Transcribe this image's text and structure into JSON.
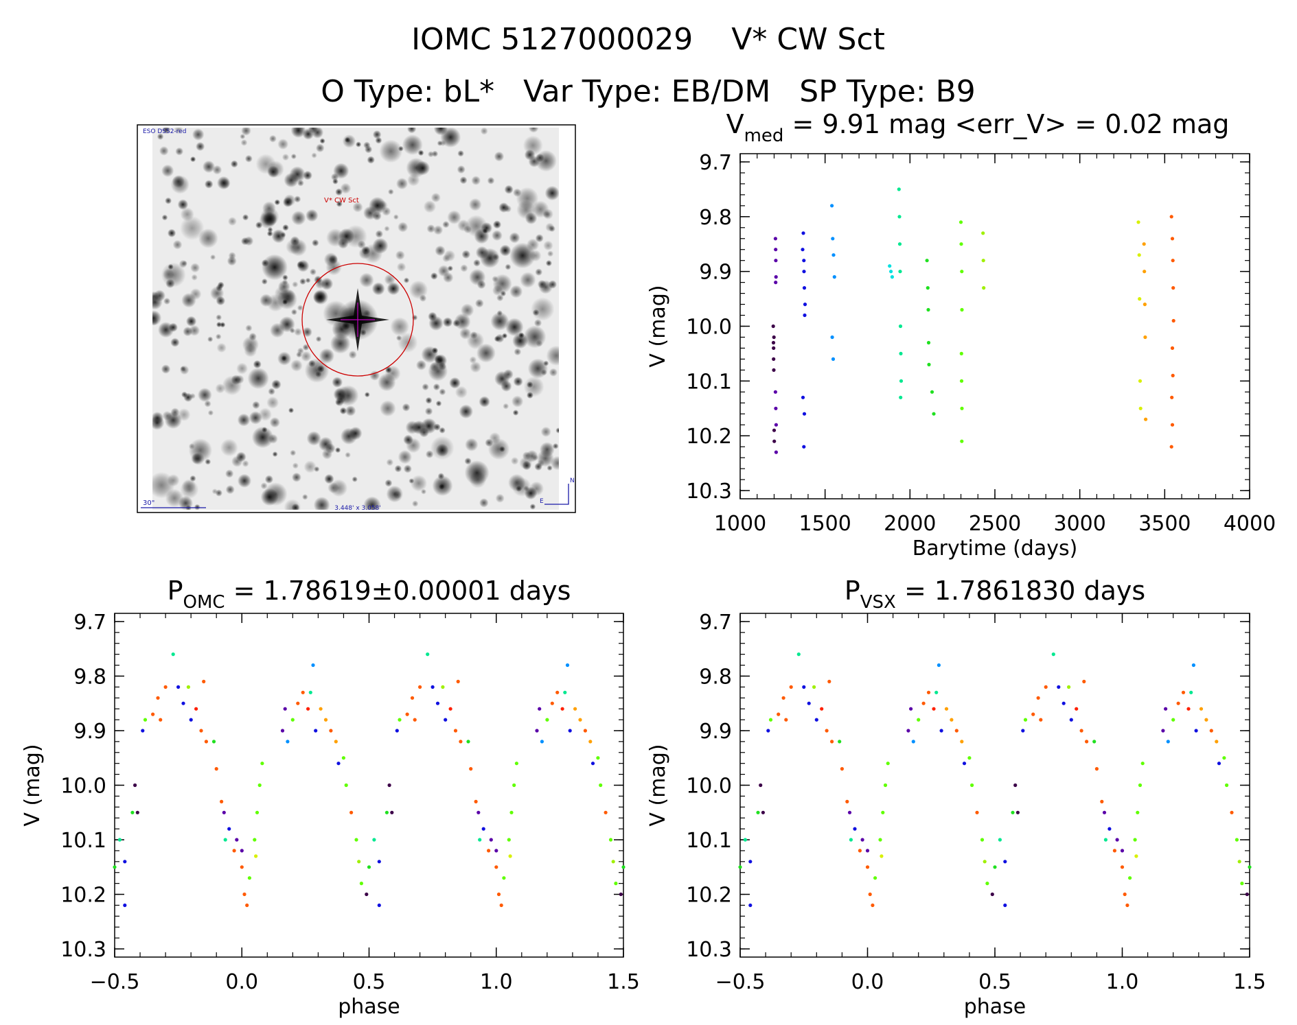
{
  "header": {
    "line1": "IOMC 5127000029    V* CW Sct",
    "line2": "O Type: bL*   Var Type: EB/DM   SP Type: B9"
  },
  "finder": {
    "survey_label": "ESO DSS2-red",
    "target_label": "V* CW Sct",
    "scale_label": "30\"",
    "fov_label": "3.448' x 3.058'",
    "north_label": "N",
    "east_label": "E",
    "label_color": "#1a1aa8",
    "marker_color": "#cc0000"
  },
  "season_colors": [
    "#3c0048",
    "#5a00a8",
    "#1010e0",
    "#0090ff",
    "#00e0e0",
    "#00e890",
    "#20e020",
    "#60ff00",
    "#a0f000",
    "#d8f000",
    "#ffa000",
    "#ff5a00",
    "#ff2000"
  ],
  "chart_data": [
    {
      "type": "scatter",
      "title_main": "V",
      "title_sub": "med",
      "title_rest": " = 9.91 mag <err_V> = 0.02 mag",
      "xlabel": "Barytime (days)",
      "ylabel": "V (mag)",
      "xlim": [
        1000,
        4000
      ],
      "ylim": [
        9.685,
        10.315
      ],
      "y_inverted": true,
      "xticks": [
        1000,
        1500,
        2000,
        2500,
        3000,
        3500,
        4000
      ],
      "xtick_labels": [
        "1000",
        "1500",
        "2000",
        "2500",
        "3000",
        "3500",
        "4000"
      ],
      "yticks": [
        9.7,
        9.8,
        9.9,
        10.0,
        10.1,
        10.2,
        10.3
      ],
      "ytick_labels": [
        "9.7",
        "9.8",
        "9.9",
        "10.0",
        "10.1",
        "10.2",
        "10.3"
      ],
      "grid": false,
      "series": [
        {
          "season": 0,
          "points": [
            [
              1195,
              10.0
            ],
            [
              1196,
              10.03
            ],
            [
              1197,
              10.06
            ],
            [
              1198,
              10.08
            ],
            [
              1199,
              10.02
            ],
            [
              1200,
              10.19
            ],
            [
              1201,
              10.21
            ],
            [
              1197,
              10.04
            ]
          ]
        },
        {
          "season": 1,
          "points": [
            [
              1208,
              9.84
            ],
            [
              1209,
              9.86
            ],
            [
              1210,
              9.88
            ],
            [
              1211,
              9.91
            ],
            [
              1209,
              9.92
            ],
            [
              1208,
              10.12
            ],
            [
              1210,
              10.15
            ],
            [
              1212,
              10.18
            ],
            [
              1212,
              10.23
            ]
          ]
        },
        {
          "season": 2,
          "points": [
            [
              1368,
              9.86
            ],
            [
              1372,
              9.83
            ],
            [
              1375,
              9.88
            ],
            [
              1376,
              9.9
            ],
            [
              1378,
              9.93
            ],
            [
              1382,
              9.96
            ],
            [
              1380,
              9.98
            ],
            [
              1370,
              10.13
            ],
            [
              1378,
              10.16
            ],
            [
              1375,
              10.22
            ]
          ]
        },
        {
          "season": 3,
          "points": [
            [
              1540,
              9.78
            ],
            [
              1545,
              9.84
            ],
            [
              1550,
              9.87
            ],
            [
              1555,
              9.91
            ],
            [
              1542,
              10.02
            ],
            [
              1548,
              10.06
            ]
          ]
        },
        {
          "season": 4,
          "points": [
            [
              1880,
              9.89
            ],
            [
              1888,
              9.9
            ],
            [
              1895,
              9.91
            ]
          ]
        },
        {
          "season": 5,
          "points": [
            [
              1935,
              9.75
            ],
            [
              1938,
              9.8
            ],
            [
              1940,
              9.85
            ],
            [
              1942,
              9.9
            ],
            [
              1944,
              10.0
            ],
            [
              1946,
              10.05
            ],
            [
              1948,
              10.1
            ],
            [
              1945,
              10.13
            ]
          ]
        },
        {
          "season": 6,
          "points": [
            [
              2100,
              9.88
            ],
            [
              2105,
              9.93
            ],
            [
              2108,
              9.97
            ],
            [
              2110,
              10.03
            ],
            [
              2112,
              10.07
            ],
            [
              2130,
              10.12
            ],
            [
              2140,
              10.16
            ]
          ]
        },
        {
          "season": 7,
          "points": [
            [
              2300,
              9.81
            ],
            [
              2302,
              9.85
            ],
            [
              2305,
              9.9
            ],
            [
              2306,
              9.97
            ],
            [
              2303,
              10.05
            ],
            [
              2304,
              10.1
            ],
            [
              2306,
              10.15
            ],
            [
              2305,
              10.21
            ]
          ]
        },
        {
          "season": 8,
          "points": [
            [
              2430,
              9.83
            ],
            [
              2432,
              9.88
            ],
            [
              2434,
              9.93
            ]
          ]
        },
        {
          "season": 9,
          "points": [
            [
              3345,
              9.81
            ],
            [
              3350,
              9.87
            ],
            [
              3352,
              9.95
            ],
            [
              3355,
              10.1
            ],
            [
              3358,
              10.15
            ]
          ]
        },
        {
          "season": 10,
          "points": [
            [
              3378,
              9.85
            ],
            [
              3380,
              9.9
            ],
            [
              3383,
              9.96
            ],
            [
              3385,
              10.02
            ],
            [
              3388,
              10.17
            ]
          ]
        },
        {
          "season": 11,
          "points": [
            [
              3540,
              9.8
            ],
            [
              3545,
              9.84
            ],
            [
              3548,
              9.88
            ],
            [
              3550,
              9.93
            ],
            [
              3552,
              9.99
            ],
            [
              3545,
              10.04
            ],
            [
              3548,
              10.09
            ],
            [
              3542,
              10.13
            ],
            [
              3545,
              10.18
            ],
            [
              3540,
              10.22
            ]
          ]
        }
      ]
    },
    {
      "type": "scatter",
      "title_main": "P",
      "title_sub": "OMC",
      "title_rest": " = 1.78619±0.00001 days",
      "xlabel": "phase",
      "ylabel": "V (mag)",
      "xlim": [
        -0.5,
        1.5
      ],
      "ylim": [
        9.685,
        10.315
      ],
      "y_inverted": true,
      "xticks": [
        -0.5,
        0.0,
        0.5,
        1.0,
        1.5
      ],
      "xtick_labels": [
        "−0.5",
        "0.0",
        "0.5",
        "1.0",
        "1.5"
      ],
      "yticks": [
        9.7,
        9.8,
        9.9,
        10.0,
        10.1,
        10.2,
        10.3
      ],
      "ytick_labels": [
        "9.7",
        "9.8",
        "9.9",
        "10.0",
        "10.1",
        "10.2",
        "10.3"
      ],
      "grid": false,
      "phase_repeated": true,
      "points": [
        [
          0.0,
          10.15,
          11
        ],
        [
          0.01,
          10.2,
          11
        ],
        [
          0.0,
          10.12,
          1
        ],
        [
          0.02,
          10.22,
          11
        ],
        [
          0.03,
          10.17,
          7
        ],
        [
          0.05,
          10.1,
          7
        ],
        [
          0.06,
          10.05,
          7
        ],
        [
          0.07,
          10.0,
          7
        ],
        [
          0.08,
          9.96,
          7
        ],
        [
          0.055,
          10.13,
          9
        ],
        [
          0.16,
          9.9,
          1
        ],
        [
          0.17,
          9.86,
          1
        ],
        [
          0.18,
          9.92,
          3
        ],
        [
          0.2,
          9.88,
          7
        ],
        [
          0.22,
          9.85,
          11
        ],
        [
          0.24,
          9.83,
          11
        ],
        [
          0.26,
          9.86,
          12
        ],
        [
          0.27,
          9.83,
          5
        ],
        [
          0.28,
          9.78,
          3
        ],
        [
          0.29,
          9.9,
          2
        ],
        [
          0.31,
          9.86,
          10
        ],
        [
          0.33,
          9.88,
          10
        ],
        [
          0.35,
          9.9,
          11
        ],
        [
          0.37,
          9.92,
          10
        ],
        [
          0.38,
          9.96,
          2
        ],
        [
          0.4,
          9.95,
          7
        ],
        [
          0.41,
          10.0,
          7
        ],
        [
          0.43,
          10.05,
          11
        ],
        [
          0.45,
          10.1,
          7
        ],
        [
          0.46,
          10.14,
          8
        ],
        [
          0.47,
          10.18,
          7
        ],
        [
          0.49,
          10.2,
          0
        ],
        [
          0.5,
          10.15,
          6
        ],
        [
          0.52,
          10.1,
          5
        ],
        [
          0.54,
          10.14,
          2
        ],
        [
          0.54,
          10.22,
          2
        ],
        [
          0.57,
          10.05,
          6
        ],
        [
          0.58,
          10.0,
          0
        ],
        [
          0.59,
          10.05,
          0
        ],
        [
          0.61,
          9.9,
          2
        ],
        [
          0.62,
          9.88,
          7
        ],
        [
          0.65,
          9.87,
          11
        ],
        [
          0.67,
          9.84,
          11
        ],
        [
          0.68,
          9.88,
          11
        ],
        [
          0.7,
          9.82,
          11
        ],
        [
          0.73,
          9.76,
          5
        ],
        [
          0.75,
          9.82,
          2
        ],
        [
          0.77,
          9.85,
          2
        ],
        [
          0.79,
          9.82,
          8
        ],
        [
          0.8,
          9.88,
          2
        ],
        [
          0.82,
          9.86,
          12
        ],
        [
          0.84,
          9.9,
          11
        ],
        [
          0.85,
          9.81,
          11
        ],
        [
          0.86,
          9.92,
          11
        ],
        [
          0.89,
          9.92,
          6
        ],
        [
          0.9,
          9.97,
          11
        ],
        [
          0.92,
          10.03,
          11
        ],
        [
          0.93,
          10.05,
          1
        ],
        [
          0.935,
          10.1,
          5
        ],
        [
          0.95,
          10.08,
          2
        ],
        [
          0.97,
          10.12,
          11
        ],
        [
          0.98,
          10.1,
          1
        ]
      ]
    },
    {
      "type": "scatter",
      "title_main": "P",
      "title_sub": "VSX",
      "title_rest": " = 1.7861830 days",
      "xlabel": "phase",
      "ylabel": "V (mag)",
      "xlim": [
        -0.5,
        1.5
      ],
      "ylim": [
        9.685,
        10.315
      ],
      "y_inverted": true,
      "xticks": [
        -0.5,
        0.0,
        0.5,
        1.0,
        1.5
      ],
      "xtick_labels": [
        "−0.5",
        "0.0",
        "0.5",
        "1.0",
        "1.5"
      ],
      "yticks": [
        9.7,
        9.8,
        9.9,
        10.0,
        10.1,
        10.2,
        10.3
      ],
      "ytick_labels": [
        "9.7",
        "9.8",
        "9.9",
        "10.0",
        "10.1",
        "10.2",
        "10.3"
      ],
      "grid": false,
      "phase_repeated": true,
      "points": [
        [
          0.0,
          10.15,
          11
        ],
        [
          0.01,
          10.2,
          11
        ],
        [
          0.0,
          10.12,
          1
        ],
        [
          0.02,
          10.22,
          11
        ],
        [
          0.03,
          10.17,
          7
        ],
        [
          0.05,
          10.1,
          7
        ],
        [
          0.06,
          10.05,
          7
        ],
        [
          0.07,
          10.0,
          7
        ],
        [
          0.08,
          9.96,
          7
        ],
        [
          0.055,
          10.13,
          9
        ],
        [
          0.16,
          9.9,
          1
        ],
        [
          0.17,
          9.86,
          1
        ],
        [
          0.18,
          9.92,
          3
        ],
        [
          0.2,
          9.88,
          7
        ],
        [
          0.22,
          9.85,
          11
        ],
        [
          0.24,
          9.83,
          11
        ],
        [
          0.26,
          9.86,
          12
        ],
        [
          0.27,
          9.83,
          5
        ],
        [
          0.28,
          9.78,
          3
        ],
        [
          0.29,
          9.9,
          2
        ],
        [
          0.31,
          9.86,
          10
        ],
        [
          0.33,
          9.88,
          10
        ],
        [
          0.35,
          9.9,
          11
        ],
        [
          0.37,
          9.92,
          10
        ],
        [
          0.38,
          9.96,
          2
        ],
        [
          0.4,
          9.95,
          7
        ],
        [
          0.41,
          10.0,
          7
        ],
        [
          0.43,
          10.05,
          11
        ],
        [
          0.45,
          10.1,
          7
        ],
        [
          0.46,
          10.14,
          8
        ],
        [
          0.47,
          10.18,
          7
        ],
        [
          0.49,
          10.2,
          0
        ],
        [
          0.5,
          10.15,
          6
        ],
        [
          0.52,
          10.1,
          5
        ],
        [
          0.54,
          10.14,
          2
        ],
        [
          0.54,
          10.22,
          2
        ],
        [
          0.57,
          10.05,
          6
        ],
        [
          0.58,
          10.0,
          0
        ],
        [
          0.59,
          10.05,
          0
        ],
        [
          0.61,
          9.9,
          2
        ],
        [
          0.62,
          9.88,
          7
        ],
        [
          0.65,
          9.87,
          11
        ],
        [
          0.67,
          9.84,
          11
        ],
        [
          0.68,
          9.88,
          11
        ],
        [
          0.7,
          9.82,
          11
        ],
        [
          0.73,
          9.76,
          5
        ],
        [
          0.75,
          9.82,
          2
        ],
        [
          0.77,
          9.85,
          2
        ],
        [
          0.79,
          9.82,
          8
        ],
        [
          0.8,
          9.88,
          2
        ],
        [
          0.82,
          9.86,
          12
        ],
        [
          0.84,
          9.9,
          11
        ],
        [
          0.85,
          9.81,
          11
        ],
        [
          0.86,
          9.92,
          11
        ],
        [
          0.89,
          9.92,
          6
        ],
        [
          0.9,
          9.97,
          11
        ],
        [
          0.92,
          10.03,
          11
        ],
        [
          0.93,
          10.05,
          1
        ],
        [
          0.935,
          10.1,
          5
        ],
        [
          0.95,
          10.08,
          2
        ],
        [
          0.97,
          10.12,
          11
        ],
        [
          0.98,
          10.1,
          1
        ]
      ]
    }
  ]
}
